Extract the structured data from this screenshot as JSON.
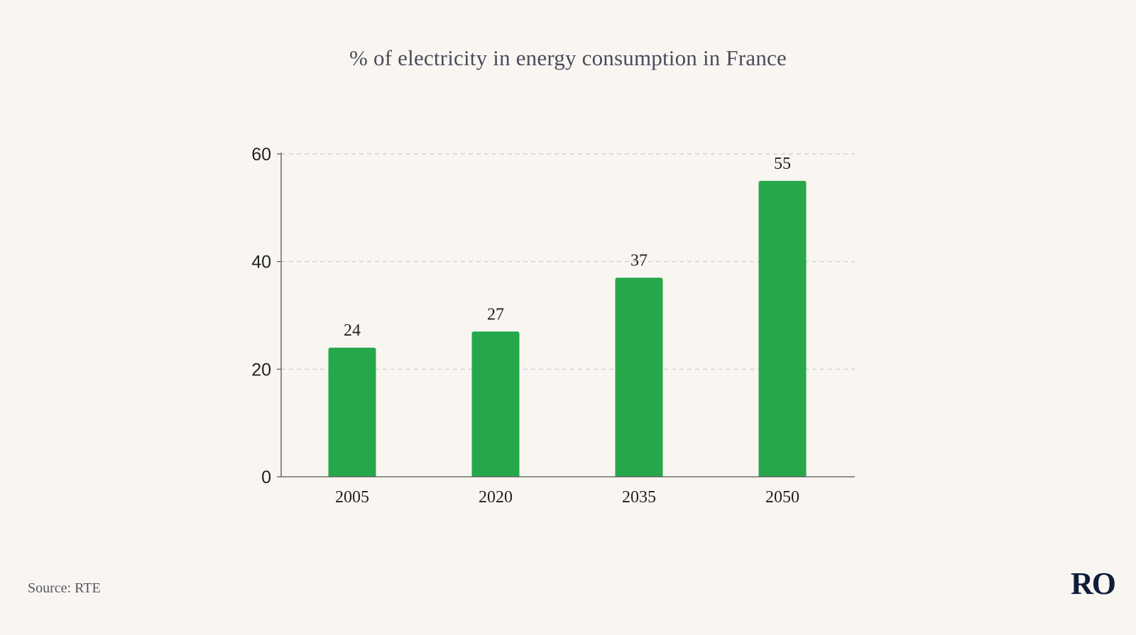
{
  "chart_data": {
    "type": "bar",
    "title": "% of electricity in energy consumption in France",
    "categories": [
      "2005",
      "2020",
      "2035",
      "2050"
    ],
    "values": [
      24,
      27,
      37,
      55
    ],
    "ylim": [
      0,
      60
    ],
    "yticks": [
      "0",
      "20",
      "40",
      "60"
    ],
    "xlabel": "",
    "ylabel": "",
    "grid": true,
    "bar_color": "#26a84a",
    "data_labels": [
      "24",
      "27",
      "37",
      "55"
    ]
  },
  "footer": {
    "source": "Source: RTE",
    "logo": "RO"
  },
  "colors": {
    "background": "#f9f6f2",
    "bar": "#26a84a",
    "grid": "#c9c9c9",
    "axis": "#555555",
    "text": "#222222",
    "logo": "#0f1c3a"
  }
}
